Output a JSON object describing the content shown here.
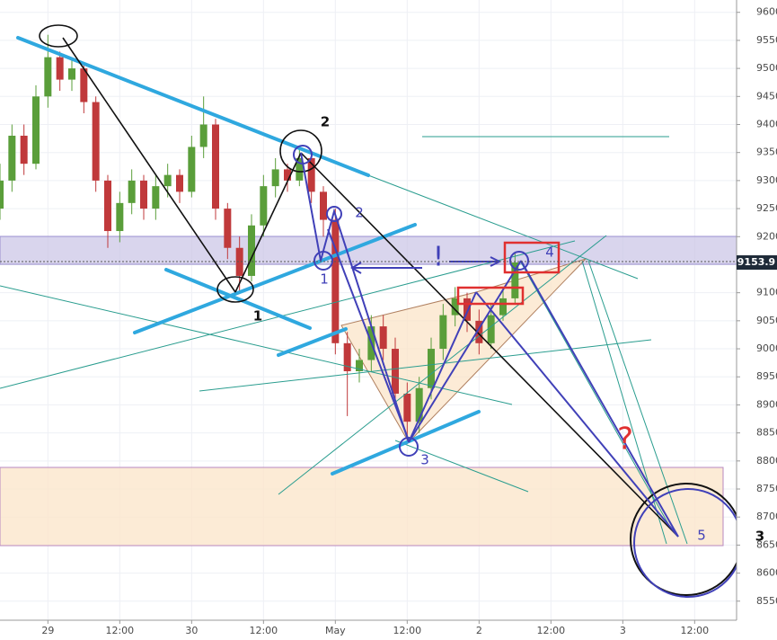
{
  "chart_data": {
    "type": "candlestick",
    "x": [
      -8,
      -6,
      -4,
      -2,
      0,
      2,
      4,
      6,
      8,
      10,
      12,
      14,
      16,
      18,
      20,
      22,
      24,
      26,
      28,
      30,
      32,
      34,
      36,
      38,
      40,
      42,
      44,
      46,
      48,
      50,
      52,
      54,
      56,
      58,
      60,
      62,
      64,
      66,
      68,
      70,
      72,
      74,
      76,
      78
    ],
    "open": [
      9250,
      9300,
      9380,
      9330,
      9450,
      9520,
      9480,
      9500,
      9440,
      9300,
      9210,
      9260,
      9300,
      9250,
      9290,
      9310,
      9280,
      9360,
      9400,
      9250,
      9180,
      9130,
      9220,
      9290,
      9320,
      9300,
      9340,
      9280,
      9230,
      9010,
      8960,
      8980,
      9040,
      9000,
      8920,
      8870,
      8930,
      9000,
      9060,
      9090,
      9050,
      9010,
      9060,
      9090
    ],
    "high": [
      9330,
      9400,
      9400,
      9470,
      9560,
      9530,
      9520,
      9510,
      9450,
      9310,
      9280,
      9320,
      9310,
      9310,
      9330,
      9320,
      9380,
      9450,
      9410,
      9260,
      9200,
      9240,
      9310,
      9340,
      9330,
      9360,
      9350,
      9290,
      9250,
      9030,
      9000,
      9060,
      9060,
      9020,
      8940,
      8950,
      9020,
      9080,
      9110,
      9100,
      9070,
      9080,
      9110,
      9170
    ],
    "low": [
      9230,
      9280,
      9310,
      9320,
      9430,
      9460,
      9460,
      9420,
      9280,
      9180,
      9190,
      9240,
      9230,
      9230,
      9270,
      9260,
      9270,
      9340,
      9230,
      9160,
      9100,
      9120,
      9200,
      9270,
      9280,
      9290,
      9260,
      9200,
      8990,
      8880,
      8940,
      8960,
      8980,
      8900,
      8830,
      8850,
      8910,
      8980,
      9040,
      9030,
      8990,
      9000,
      9050,
      9080
    ],
    "close": [
      9300,
      9380,
      9330,
      9450,
      9520,
      9480,
      9500,
      9440,
      9300,
      9210,
      9260,
      9300,
      9250,
      9290,
      9310,
      9280,
      9360,
      9400,
      9250,
      9180,
      9130,
      9220,
      9290,
      9320,
      9300,
      9340,
      9280,
      9230,
      9010,
      8960,
      8980,
      9040,
      9000,
      8920,
      8870,
      8930,
      9000,
      9060,
      9090,
      9050,
      9010,
      9060,
      9090,
      9153.9
    ],
    "up_color": "#5a9e3a",
    "down_color": "#c0393b",
    "xlim": [
      -8,
      115
    ],
    "xticks": [
      {
        "value": 0,
        "label": "29"
      },
      {
        "value": 12,
        "label": "12:00"
      },
      {
        "value": 24,
        "label": "30"
      },
      {
        "value": 36,
        "label": "12:00"
      },
      {
        "value": 48,
        "label": "May"
      },
      {
        "value": 60,
        "label": "12:00"
      },
      {
        "value": 72,
        "label": "2"
      },
      {
        "value": 84,
        "label": "12:00"
      },
      {
        "value": 96,
        "label": "3"
      },
      {
        "value": 108,
        "label": "12:00"
      }
    ],
    "ylim": [
      8516,
      9622
    ],
    "yticks": [
      {
        "value": 8550,
        "label": "8550.0"
      },
      {
        "value": 8600,
        "label": "8600.0"
      },
      {
        "value": 8650,
        "label": "8650.0"
      },
      {
        "value": 8700,
        "label": "8700.0"
      },
      {
        "value": 8750,
        "label": "8750.0"
      },
      {
        "value": 8800,
        "label": "8800.0"
      },
      {
        "value": 8850,
        "label": "8850.0"
      },
      {
        "value": 8900,
        "label": "8900.0"
      },
      {
        "value": 8950,
        "label": "8950.0"
      },
      {
        "value": 9000,
        "label": "9000.0"
      },
      {
        "value": 9050,
        "label": "9050.0"
      },
      {
        "value": 9100,
        "label": "9100.0"
      },
      {
        "value": 9150,
        "label": "9150.0"
      },
      {
        "value": 9200,
        "label": "9200.0"
      },
      {
        "value": 9250,
        "label": "9250.0"
      },
      {
        "value": 9300,
        "label": "9300.0"
      },
      {
        "value": 9350,
        "label": "9350.0"
      },
      {
        "value": 9400,
        "label": "9400.0"
      },
      {
        "value": 9450,
        "label": "9450.0"
      },
      {
        "value": 9500,
        "label": "9500.0"
      },
      {
        "value": 9550,
        "label": "9550.0"
      },
      {
        "value": 9600,
        "label": "9600.0"
      }
    ],
    "grid": true,
    "last_price": 9153.9,
    "annotations": [
      "1",
      "2",
      "3",
      "1",
      "2",
      "3",
      "4",
      "5",
      "!",
      "?"
    ]
  }
}
